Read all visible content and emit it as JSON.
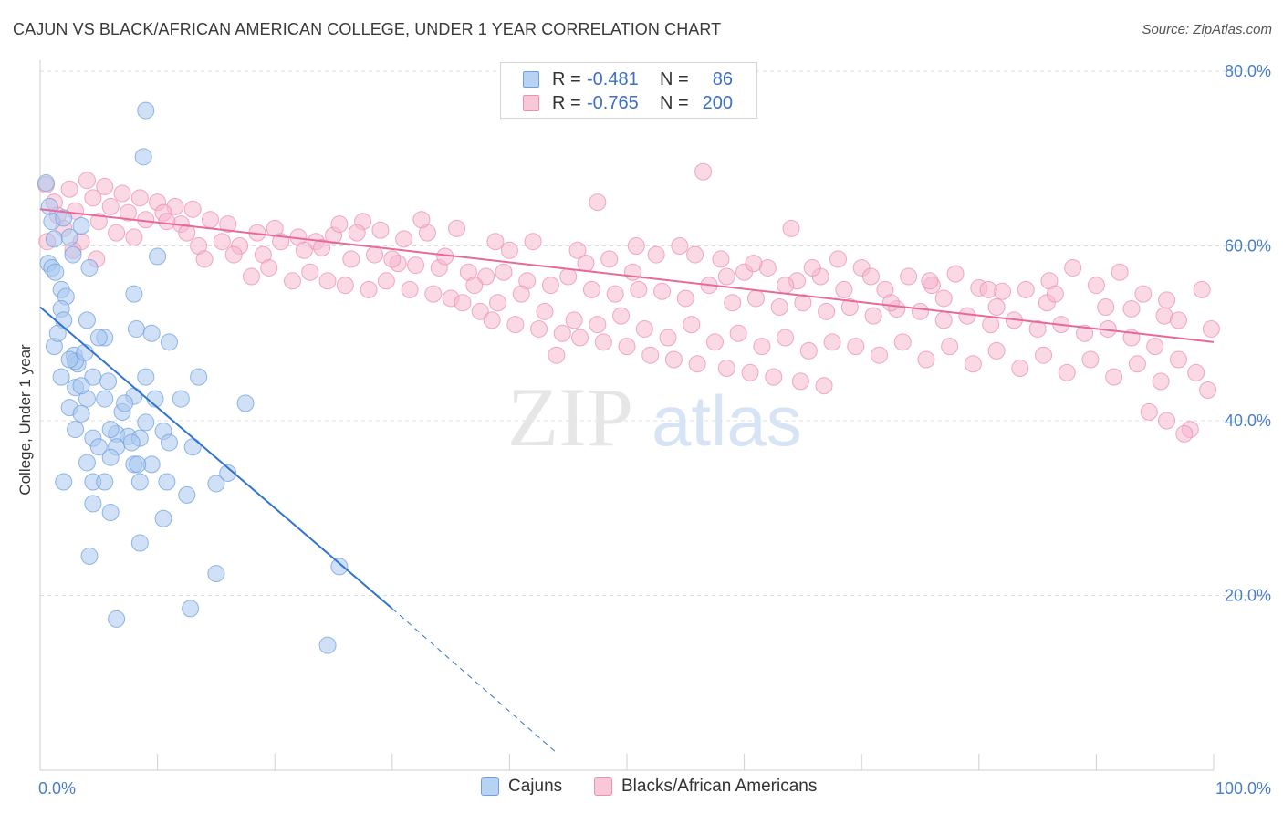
{
  "title": "CAJUN VS BLACK/AFRICAN AMERICAN COLLEGE, UNDER 1 YEAR CORRELATION CHART",
  "source": "Source: ZipAtlas.com",
  "watermark": {
    "zip": "ZIP",
    "atlas": "atlas"
  },
  "colors": {
    "blue_fill": "#a9c8f0",
    "blue_stroke": "#6f9fdc",
    "blue_line": "#2f74d0",
    "pink_fill": "#f6b8cd",
    "pink_stroke": "#ec8fb0",
    "pink_line": "#e8689a",
    "tick_text": "#4a7ec9",
    "grid": "#dddddd"
  },
  "legend_top": {
    "rows": [
      {
        "series": "Cajuns",
        "r_label": "R =",
        "r_value": "-0.481",
        "n_label": "N =",
        "n_value": "86"
      },
      {
        "series": "Blacks/African Americans",
        "r_label": "R =",
        "r_value": "-0.765",
        "n_label": "N =",
        "n_value": "200"
      }
    ]
  },
  "legend_bottom": [
    "Cajuns",
    "Blacks/African Americans"
  ],
  "chart_data": {
    "type": "scatter",
    "title": "CAJUN VS BLACK/AFRICAN AMERICAN COLLEGE, UNDER 1 YEAR CORRELATION CHART",
    "xlabel": "",
    "ylabel": "College, Under 1 year",
    "xlim": [
      0,
      100
    ],
    "ylim": [
      0,
      85
    ],
    "x_ticks": [
      0,
      100
    ],
    "x_tick_labels": [
      "0.0%",
      "100.0%"
    ],
    "y_ticks": [
      20,
      40,
      60,
      80
    ],
    "y_tick_labels": [
      "20.0%",
      "40.0%",
      "60.0%",
      "80.0%"
    ],
    "grid": true,
    "legend_position": "top-center",
    "series": [
      {
        "name": "Cajuns",
        "color": "#a9c8f0",
        "trend": {
          "x": [
            0,
            30,
            44
          ],
          "y": [
            53.0,
            18.5,
            2.0
          ],
          "solid_until_x": 30
        },
        "points": [
          [
            9.0,
            75.5
          ],
          [
            8.8,
            70.2
          ],
          [
            0.5,
            67.2
          ],
          [
            0.8,
            64.5
          ],
          [
            1.0,
            62.8
          ],
          [
            2.0,
            63.2
          ],
          [
            3.5,
            62.3
          ],
          [
            1.2,
            60.8
          ],
          [
            2.5,
            61.0
          ],
          [
            0.7,
            58.0
          ],
          [
            1.0,
            57.5
          ],
          [
            1.3,
            57.0
          ],
          [
            2.8,
            59.0
          ],
          [
            4.2,
            57.5
          ],
          [
            10.0,
            58.8
          ],
          [
            1.8,
            55.0
          ],
          [
            2.2,
            54.2
          ],
          [
            1.8,
            52.8
          ],
          [
            2.0,
            51.5
          ],
          [
            4.0,
            51.5
          ],
          [
            8.0,
            54.5
          ],
          [
            8.2,
            50.5
          ],
          [
            5.5,
            49.5
          ],
          [
            9.5,
            50.0
          ],
          [
            11.0,
            49.0
          ],
          [
            1.2,
            48.5
          ],
          [
            2.9,
            47.5
          ],
          [
            3.2,
            46.5
          ],
          [
            3.0,
            46.8
          ],
          [
            1.8,
            45.0
          ],
          [
            4.5,
            45.0
          ],
          [
            5.8,
            44.5
          ],
          [
            3.0,
            43.8
          ],
          [
            4.0,
            42.5
          ],
          [
            5.5,
            42.5
          ],
          [
            8.0,
            42.8
          ],
          [
            9.8,
            42.5
          ],
          [
            12.0,
            42.5
          ],
          [
            17.5,
            42.0
          ],
          [
            2.5,
            41.5
          ],
          [
            3.5,
            40.8
          ],
          [
            7.0,
            41.0
          ],
          [
            9.0,
            39.8
          ],
          [
            6.5,
            38.5
          ],
          [
            7.5,
            38.2
          ],
          [
            10.5,
            38.8
          ],
          [
            8.5,
            38.0
          ],
          [
            4.5,
            38.0
          ],
          [
            5.0,
            37.0
          ],
          [
            6.5,
            37.0
          ],
          [
            11.0,
            37.5
          ],
          [
            13.0,
            37.0
          ],
          [
            3.0,
            39.0
          ],
          [
            8.0,
            35.0
          ],
          [
            9.5,
            35.0
          ],
          [
            6.0,
            35.8
          ],
          [
            4.0,
            35.2
          ],
          [
            8.3,
            35.0
          ],
          [
            16.0,
            34.0
          ],
          [
            4.5,
            33.0
          ],
          [
            5.5,
            33.0
          ],
          [
            8.5,
            33.0
          ],
          [
            10.8,
            33.0
          ],
          [
            15.0,
            32.8
          ],
          [
            12.5,
            31.5
          ],
          [
            4.5,
            30.5
          ],
          [
            6.0,
            29.5
          ],
          [
            10.5,
            28.8
          ],
          [
            8.5,
            26.0
          ],
          [
            4.2,
            24.5
          ],
          [
            15.0,
            22.5
          ],
          [
            25.5,
            23.3
          ],
          [
            12.8,
            18.5
          ],
          [
            6.5,
            17.3
          ],
          [
            24.5,
            14.3
          ],
          [
            7.2,
            42.0
          ],
          [
            3.5,
            44.0
          ],
          [
            5.0,
            49.5
          ],
          [
            2.5,
            47.0
          ],
          [
            6.0,
            39.0
          ],
          [
            9.0,
            45.0
          ],
          [
            1.5,
            50.0
          ],
          [
            3.8,
            47.8
          ],
          [
            7.8,
            37.5
          ],
          [
            2.0,
            33.0
          ],
          [
            13.5,
            45.0
          ]
        ]
      },
      {
        "name": "Blacks/African Americans",
        "color": "#f6b8cd",
        "trend": {
          "x": [
            0,
            100
          ],
          "y": [
            64.2,
            49.0
          ]
        },
        "points": [
          [
            0.5,
            67.0
          ],
          [
            1.2,
            65.0
          ],
          [
            2.5,
            66.5
          ],
          [
            4.0,
            67.5
          ],
          [
            5.5,
            66.8
          ],
          [
            7.0,
            66.0
          ],
          [
            8.5,
            65.5
          ],
          [
            10.0,
            65.0
          ],
          [
            11.5,
            64.5
          ],
          [
            13.0,
            64.2
          ],
          [
            1.5,
            63.5
          ],
          [
            3.0,
            64.0
          ],
          [
            4.5,
            65.5
          ],
          [
            6.0,
            64.5
          ],
          [
            7.5,
            63.8
          ],
          [
            9.0,
            63.0
          ],
          [
            10.5,
            63.8
          ],
          [
            12.0,
            62.5
          ],
          [
            14.5,
            63.0
          ],
          [
            16.0,
            62.5
          ],
          [
            0.6,
            60.5
          ],
          [
            2.0,
            62.0
          ],
          [
            5.0,
            62.8
          ],
          [
            18.5,
            61.5
          ],
          [
            20.0,
            62.0
          ],
          [
            22.0,
            61.0
          ],
          [
            23.5,
            60.5
          ],
          [
            25.0,
            61.2
          ],
          [
            27.5,
            62.8
          ],
          [
            29.0,
            61.8
          ],
          [
            31.0,
            60.8
          ],
          [
            33.0,
            61.5
          ],
          [
            35.5,
            62.0
          ],
          [
            13.5,
            60.0
          ],
          [
            15.5,
            60.5
          ],
          [
            17.0,
            60.0
          ],
          [
            19.0,
            59.0
          ],
          [
            20.5,
            60.5
          ],
          [
            22.5,
            59.5
          ],
          [
            24.0,
            59.8
          ],
          [
            26.5,
            58.5
          ],
          [
            28.5,
            59.0
          ],
          [
            30.5,
            58.0
          ],
          [
            32.0,
            57.8
          ],
          [
            34.0,
            57.5
          ],
          [
            36.5,
            57.0
          ],
          [
            38.0,
            56.5
          ],
          [
            39.5,
            57.0
          ],
          [
            41.5,
            56.0
          ],
          [
            43.5,
            55.5
          ],
          [
            45.0,
            56.5
          ],
          [
            47.0,
            55.0
          ],
          [
            49.0,
            54.5
          ],
          [
            51.0,
            55.0
          ],
          [
            53.0,
            54.8
          ],
          [
            55.0,
            54.0
          ],
          [
            57.0,
            55.5
          ],
          [
            59.0,
            53.5
          ],
          [
            61.0,
            54.0
          ],
          [
            63.0,
            53.0
          ],
          [
            65.0,
            53.5
          ],
          [
            67.0,
            52.5
          ],
          [
            69.0,
            53.0
          ],
          [
            71.0,
            52.0
          ],
          [
            73.0,
            52.8
          ],
          [
            75.0,
            52.5
          ],
          [
            77.0,
            51.5
          ],
          [
            79.0,
            52.0
          ],
          [
            81.0,
            51.0
          ],
          [
            83.0,
            51.5
          ],
          [
            85.0,
            50.5
          ],
          [
            87.0,
            51.0
          ],
          [
            89.0,
            50.0
          ],
          [
            91.0,
            50.5
          ],
          [
            93.0,
            49.5
          ],
          [
            95.0,
            48.5
          ],
          [
            97.0,
            47.0
          ],
          [
            98.5,
            45.5
          ],
          [
            99.5,
            43.5
          ],
          [
            98.0,
            39.0
          ],
          [
            96.0,
            40.0
          ],
          [
            94.5,
            41.0
          ],
          [
            97.5,
            38.5
          ],
          [
            44.0,
            47.5
          ],
          [
            56.5,
            68.5
          ],
          [
            47.5,
            65.0
          ],
          [
            64.0,
            62.0
          ],
          [
            42.0,
            60.5
          ],
          [
            40.0,
            59.5
          ],
          [
            46.5,
            58.0
          ],
          [
            48.5,
            58.5
          ],
          [
            50.5,
            57.0
          ],
          [
            52.5,
            59.0
          ],
          [
            54.5,
            60.0
          ],
          [
            58.0,
            58.5
          ],
          [
            60.0,
            57.0
          ],
          [
            62.0,
            57.5
          ],
          [
            64.5,
            56.0
          ],
          [
            66.5,
            56.5
          ],
          [
            68.0,
            58.5
          ],
          [
            70.0,
            57.5
          ],
          [
            72.0,
            55.0
          ],
          [
            74.0,
            56.5
          ],
          [
            76.0,
            55.5
          ],
          [
            78.0,
            56.8
          ],
          [
            80.0,
            55.2
          ],
          [
            82.0,
            54.8
          ],
          [
            84.0,
            55.0
          ],
          [
            86.0,
            56.0
          ],
          [
            88.0,
            57.5
          ],
          [
            90.0,
            55.5
          ],
          [
            92.0,
            57.0
          ],
          [
            94.0,
            54.5
          ],
          [
            96.0,
            53.8
          ],
          [
            99.0,
            55.0
          ],
          [
            30.0,
            58.5
          ],
          [
            34.5,
            58.8
          ],
          [
            37.0,
            55.5
          ],
          [
            39.0,
            53.5
          ],
          [
            41.0,
            54.5
          ],
          [
            43.0,
            52.5
          ],
          [
            45.5,
            51.5
          ],
          [
            47.5,
            51.0
          ],
          [
            49.5,
            52.0
          ],
          [
            51.5,
            50.5
          ],
          [
            53.5,
            49.5
          ],
          [
            55.5,
            51.0
          ],
          [
            57.5,
            49.0
          ],
          [
            59.5,
            50.0
          ],
          [
            61.5,
            48.5
          ],
          [
            63.5,
            49.5
          ],
          [
            65.5,
            48.0
          ],
          [
            67.5,
            49.0
          ],
          [
            69.5,
            48.5
          ],
          [
            71.5,
            47.5
          ],
          [
            73.5,
            49.0
          ],
          [
            75.5,
            47.0
          ],
          [
            77.5,
            48.5
          ],
          [
            79.5,
            46.5
          ],
          [
            81.5,
            48.0
          ],
          [
            83.5,
            46.0
          ],
          [
            85.5,
            47.5
          ],
          [
            87.5,
            45.5
          ],
          [
            89.5,
            47.0
          ],
          [
            91.5,
            45.0
          ],
          [
            93.5,
            46.5
          ],
          [
            95.5,
            44.5
          ],
          [
            10.8,
            62.8
          ],
          [
            12.5,
            61.5
          ],
          [
            14.0,
            58.5
          ],
          [
            16.5,
            59.0
          ],
          [
            18.0,
            56.5
          ],
          [
            19.5,
            57.5
          ],
          [
            21.5,
            56.0
          ],
          [
            23.0,
            57.0
          ],
          [
            24.5,
            56.0
          ],
          [
            26.0,
            55.5
          ],
          [
            28.0,
            55.0
          ],
          [
            29.5,
            56.0
          ],
          [
            31.5,
            55.0
          ],
          [
            33.5,
            54.5
          ],
          [
            35.0,
            54.0
          ],
          [
            36.0,
            53.5
          ],
          [
            37.5,
            52.5
          ],
          [
            38.5,
            51.5
          ],
          [
            40.5,
            51.0
          ],
          [
            42.5,
            50.5
          ],
          [
            44.5,
            50.0
          ],
          [
            46.0,
            49.5
          ],
          [
            48.0,
            49.0
          ],
          [
            50.0,
            48.5
          ],
          [
            52.0,
            47.5
          ],
          [
            54.0,
            47.0
          ],
          [
            56.0,
            46.5
          ],
          [
            58.5,
            46.0
          ],
          [
            60.5,
            45.5
          ],
          [
            62.5,
            45.0
          ],
          [
            64.8,
            44.5
          ],
          [
            66.8,
            44.0
          ],
          [
            8.0,
            61.0
          ],
          [
            6.5,
            61.5
          ],
          [
            3.5,
            60.5
          ],
          [
            2.8,
            59.5
          ],
          [
            4.8,
            58.5
          ],
          [
            25.5,
            62.5
          ],
          [
            27.0,
            61.5
          ],
          [
            32.5,
            63.0
          ],
          [
            38.8,
            60.5
          ],
          [
            45.8,
            59.5
          ],
          [
            50.8,
            60.0
          ],
          [
            55.8,
            59.0
          ],
          [
            60.8,
            58.0
          ],
          [
            65.8,
            57.5
          ],
          [
            70.8,
            56.5
          ],
          [
            75.8,
            56.0
          ],
          [
            80.8,
            55.0
          ],
          [
            85.8,
            53.5
          ],
          [
            90.8,
            53.0
          ],
          [
            95.8,
            52.0
          ],
          [
            99.8,
            50.5
          ],
          [
            93.0,
            52.8
          ],
          [
            97.0,
            51.5
          ],
          [
            86.5,
            54.5
          ],
          [
            81.5,
            53.0
          ],
          [
            77.0,
            54.0
          ],
          [
            72.5,
            53.5
          ],
          [
            68.5,
            55.0
          ],
          [
            63.5,
            55.5
          ],
          [
            58.5,
            56.5
          ]
        ]
      }
    ]
  }
}
